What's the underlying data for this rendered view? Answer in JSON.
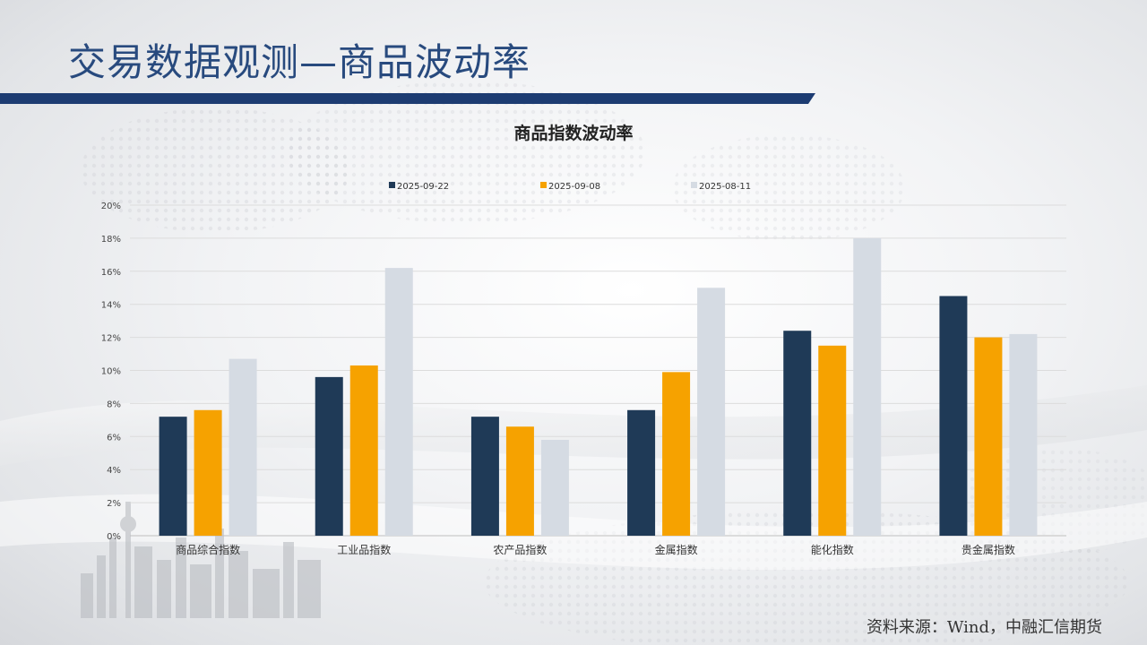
{
  "page": {
    "title": "交易数据观测—商品波动率"
  },
  "source_note": "资料来源：Wind，中融汇信期货",
  "colors": {
    "series1": "#1f3a57",
    "series2": "#f6a200",
    "series3": "#d5dbe3",
    "accent": "#1d3c72"
  },
  "chart_data": {
    "type": "bar",
    "title": "商品指数波动率",
    "categories": [
      "商品综合指数",
      "工业品指数",
      "农产品指数",
      "金属指数",
      "能化指数",
      "贵金属指数"
    ],
    "series": [
      {
        "name": "2025-09-22",
        "values": [
          7.2,
          9.6,
          7.2,
          7.6,
          12.4,
          14.5
        ]
      },
      {
        "name": "2025-09-08",
        "values": [
          7.6,
          10.3,
          6.6,
          9.9,
          11.5,
          12.0
        ]
      },
      {
        "name": "2025-08-11",
        "values": [
          10.7,
          16.2,
          5.8,
          15.0,
          18.0,
          12.2
        ]
      }
    ],
    "ylim": [
      0,
      20
    ],
    "yticks": [
      "0%",
      "2%",
      "4%",
      "6%",
      "8%",
      "10%",
      "12%",
      "14%",
      "16%",
      "18%",
      "20%"
    ],
    "grid": true,
    "legend_position": "top"
  }
}
